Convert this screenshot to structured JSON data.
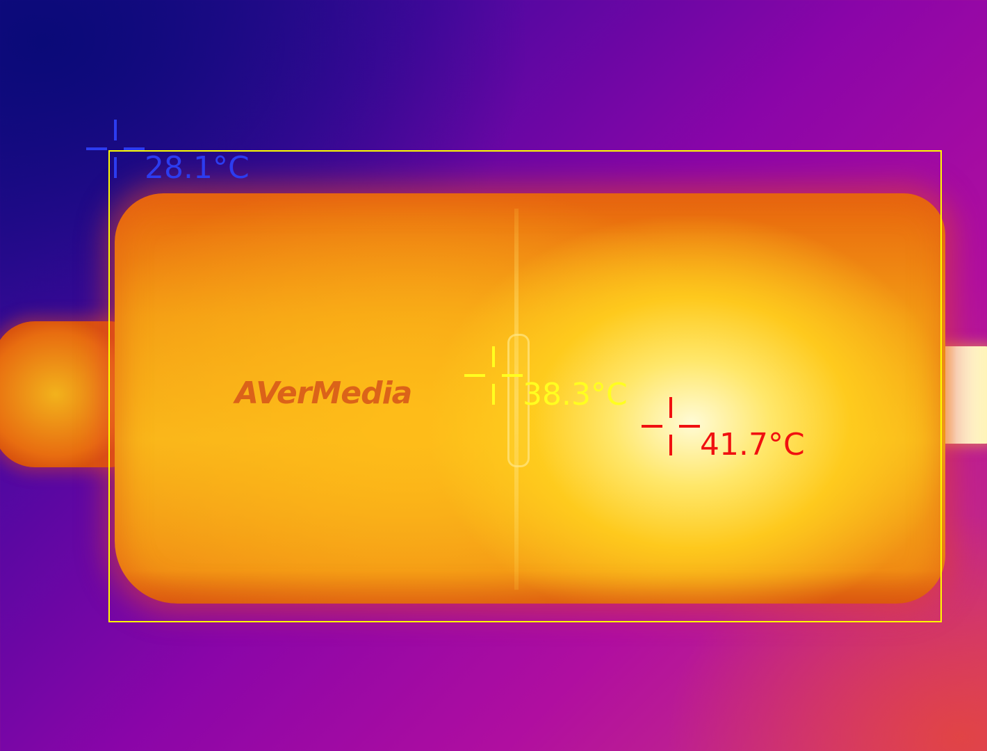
{
  "image": {
    "brand_text": "AVerMedia"
  },
  "overlay": {
    "roi_color": "#ffff00",
    "markers": [
      {
        "id": "min",
        "label": "28.1°C",
        "color": "#2c3cf0"
      },
      {
        "id": "center",
        "label": "38.3°C",
        "color": "#ffff20"
      },
      {
        "id": "max",
        "label": "41.7°C",
        "color": "#f01010"
      }
    ]
  }
}
